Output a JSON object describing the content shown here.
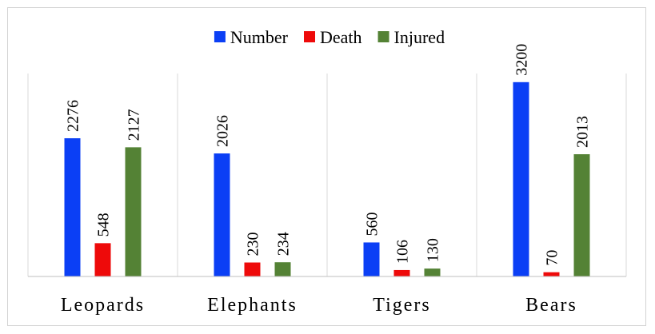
{
  "chart_data": {
    "type": "bar",
    "categories": [
      "Leopards",
      "Elephants",
      "Tigers",
      "Bears"
    ],
    "series": [
      {
        "name": "Number",
        "color": "#0b3ff5",
        "values": [
          2276,
          2026,
          560,
          3200
        ]
      },
      {
        "name": "Death",
        "color": "#ee0a0a",
        "values": [
          548,
          230,
          106,
          70
        ]
      },
      {
        "name": "Injured",
        "color": "#548235",
        "values": [
          2127,
          234,
          130,
          2013
        ]
      }
    ],
    "title": "",
    "xlabel": "",
    "ylabel": "",
    "ylim": [
      0,
      3500
    ],
    "legend": "top-center",
    "grid": false,
    "data_labels": true
  }
}
